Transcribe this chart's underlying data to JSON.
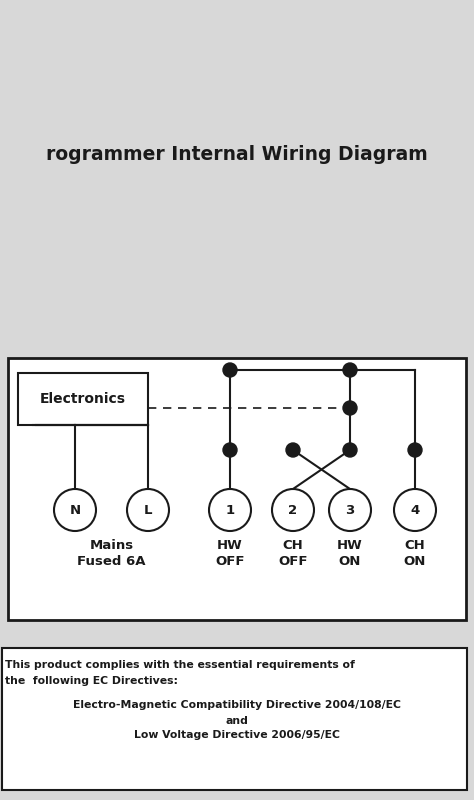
{
  "title": "rogrammer Internal Wiring Diagram",
  "bg_color": "#c8c8c8",
  "page_color": "#d8d8d8",
  "border_color": "#1a1a1a",
  "text_color": "#1a1a1a",
  "title_fontsize": 13.5,
  "label_fontsize": 9.5,
  "compliance_text_1": "This product complies with the essential requirements of",
  "compliance_text_2": "the  following EC Directives:",
  "compliance_text_3": "Electro-Magnetic Compatibility Directive 2004/108/EC",
  "compliance_text_4": "and",
  "compliance_text_5": "Low Voltage Directive 2006/95/EC",
  "electronics_label": "Electronics"
}
